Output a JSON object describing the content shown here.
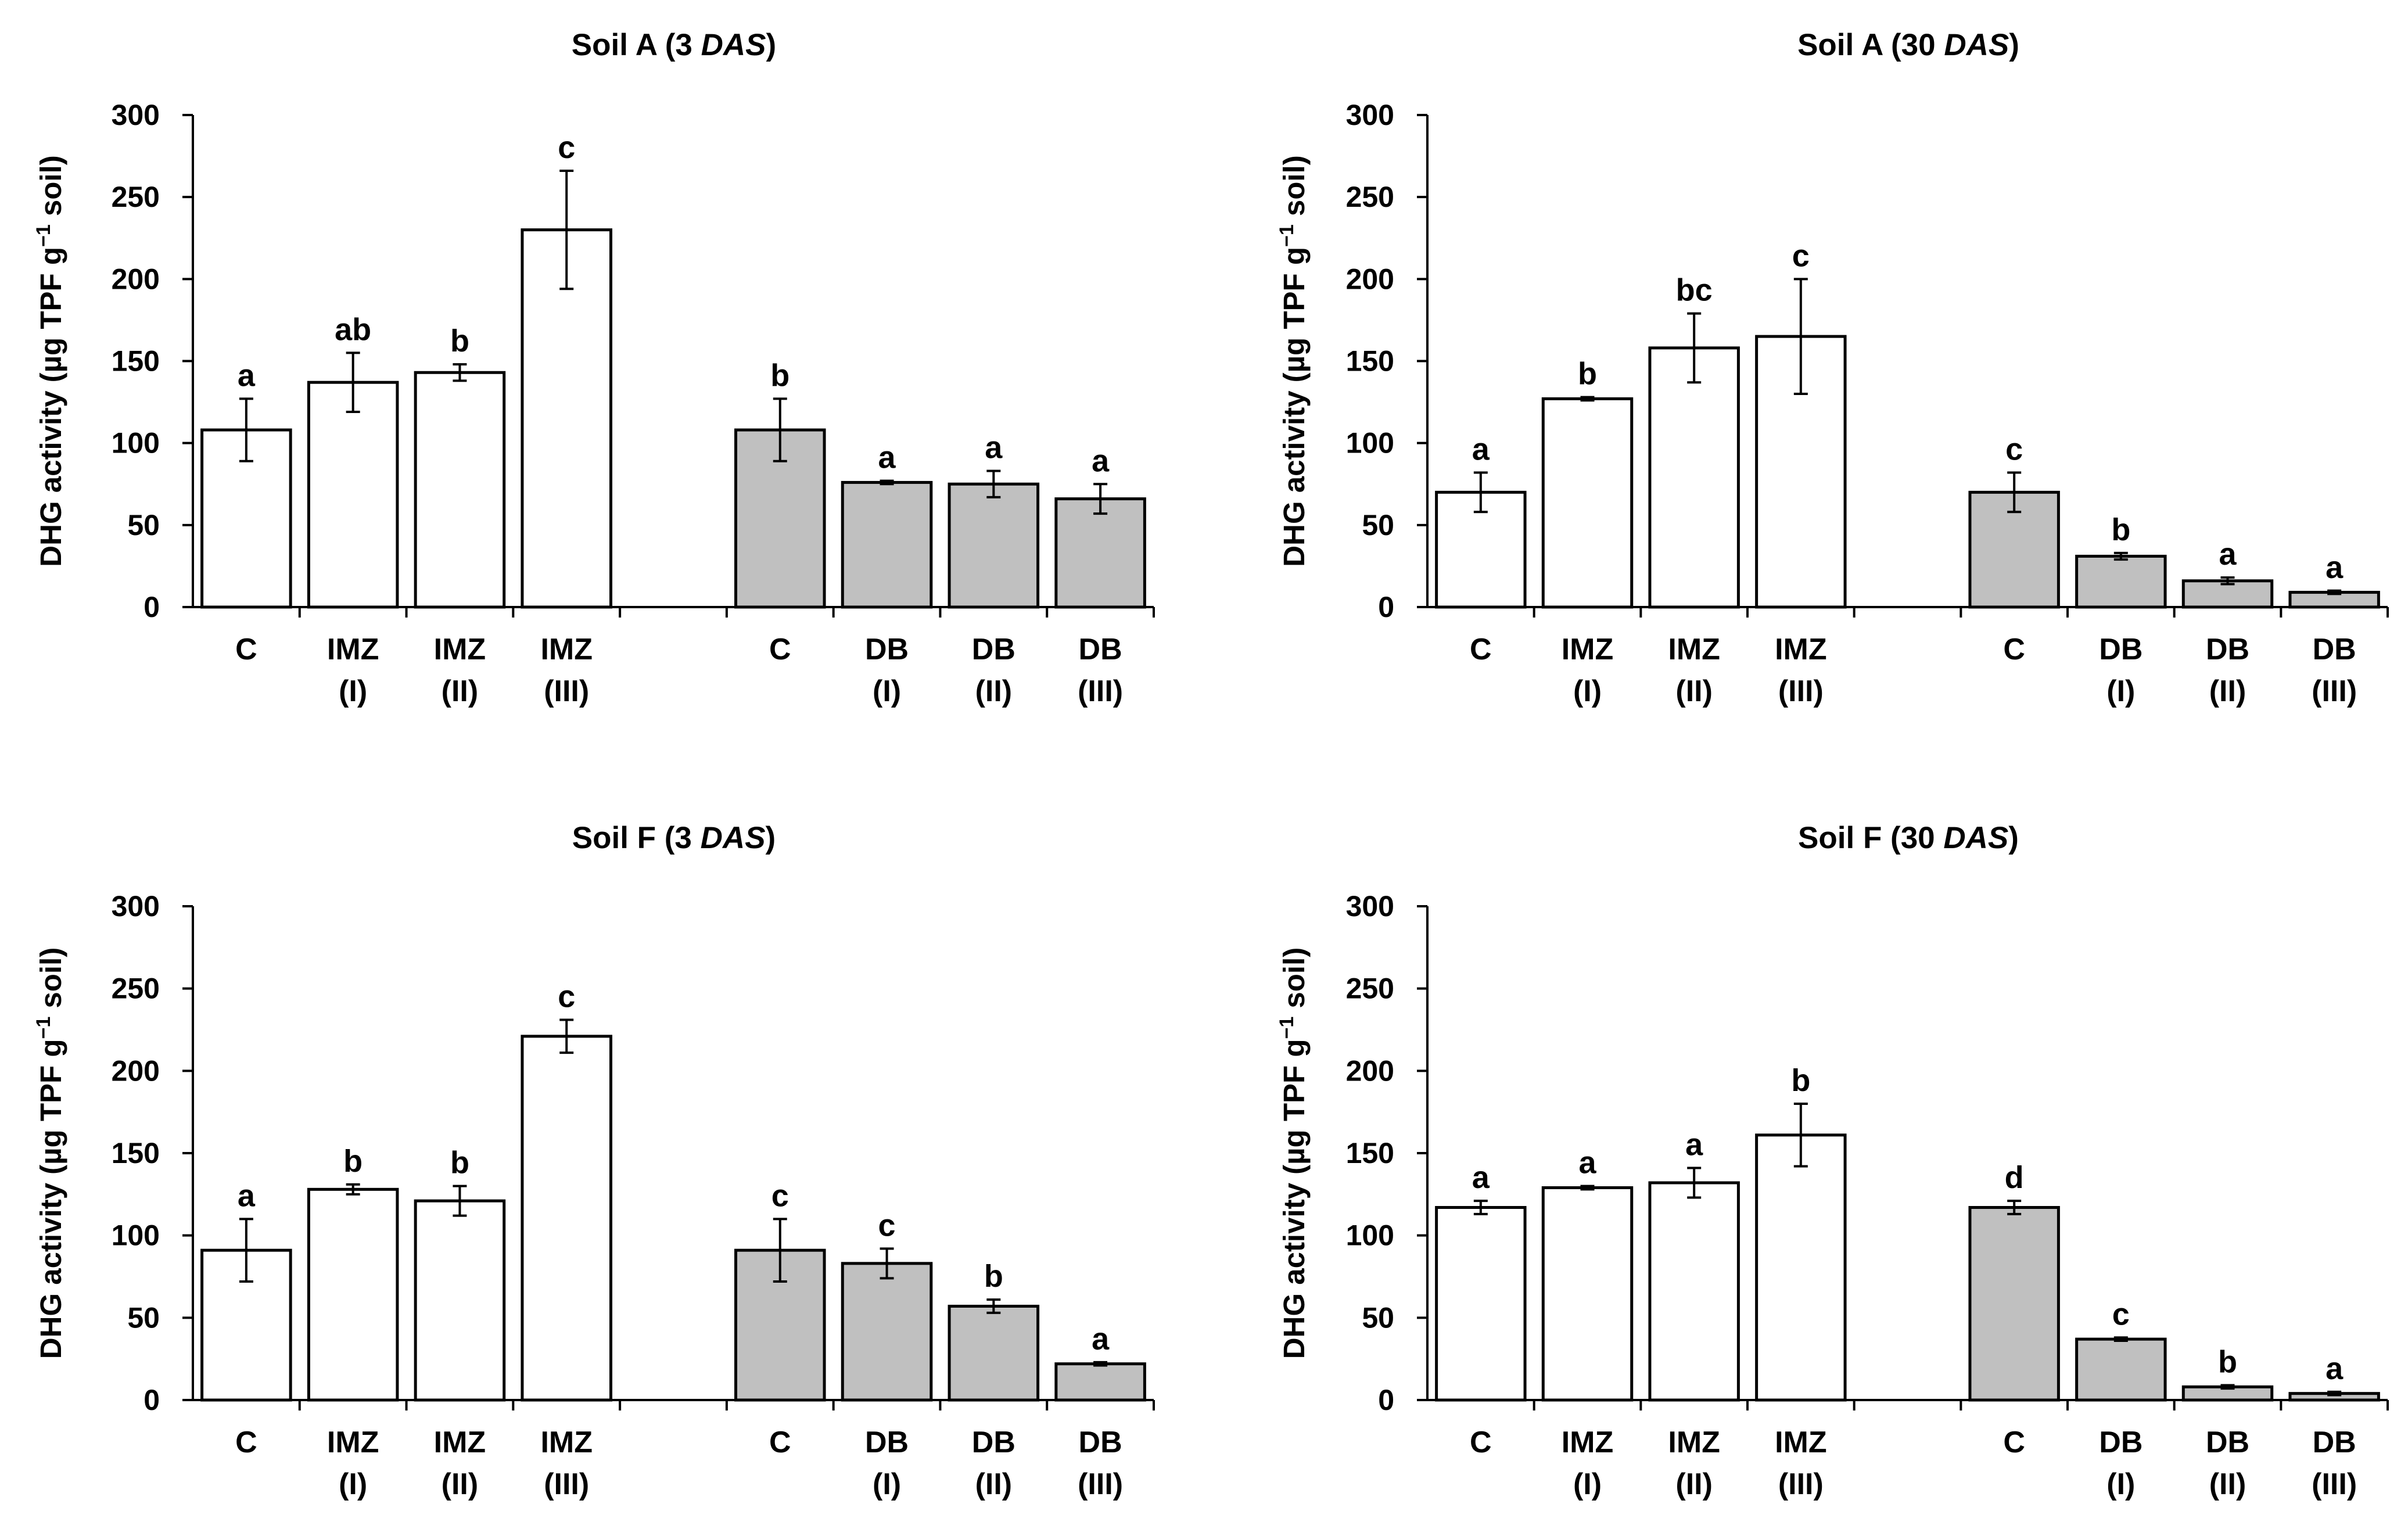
{
  "chart_data": [
    {
      "type": "bar",
      "title": "Soil A (3 ",
      "title_italic": "DAS",
      "title_end": ")",
      "ylabel": "DHG activity (µg TPF g",
      "ylabel_sup": "−1",
      "ylabel_end": " soil)",
      "ylim": [
        0,
        300
      ],
      "yticks": [
        "0",
        "50",
        "100",
        "150",
        "200",
        "250",
        "300"
      ],
      "categories": [
        {
          "line1": "C",
          "line2": ""
        },
        {
          "line1": "IMZ",
          "line2": "(I)"
        },
        {
          "line1": "IMZ",
          "line2": "(II)"
        },
        {
          "line1": "IMZ",
          "line2": "(III)"
        },
        {
          "line1": "",
          "line2": ""
        },
        {
          "line1": "C",
          "line2": ""
        },
        {
          "line1": "DB",
          "line2": "(I)"
        },
        {
          "line1": "DB",
          "line2": "(II)"
        },
        {
          "line1": "DB",
          "line2": "(III)"
        }
      ],
      "values": [
        108,
        137,
        143,
        230,
        null,
        108,
        76,
        75,
        66
      ],
      "errors": [
        19,
        18,
        5,
        36,
        null,
        19,
        1,
        8,
        9
      ],
      "letters": [
        "a",
        "ab",
        "b",
        "c",
        "",
        "b",
        "a",
        "a",
        "a"
      ],
      "fills": [
        "#ffffff",
        "#ffffff",
        "#ffffff",
        "#ffffff",
        "",
        "#c0c0c0",
        "#c0c0c0",
        "#c0c0c0",
        "#c0c0c0"
      ]
    },
    {
      "type": "bar",
      "title": "Soil A (30 ",
      "title_italic": "DAS",
      "title_end": ")",
      "ylabel": "DHG activity (µg TPF g",
      "ylabel_sup": "−1",
      "ylabel_end": " soil)",
      "ylim": [
        0,
        300
      ],
      "yticks": [
        "0",
        "50",
        "100",
        "150",
        "200",
        "250",
        "300"
      ],
      "categories": [
        {
          "line1": "C",
          "line2": ""
        },
        {
          "line1": "IMZ",
          "line2": "(I)"
        },
        {
          "line1": "IMZ",
          "line2": "(II)"
        },
        {
          "line1": "IMZ",
          "line2": "(III)"
        },
        {
          "line1": "",
          "line2": ""
        },
        {
          "line1": "C",
          "line2": ""
        },
        {
          "line1": "DB",
          "line2": "(I)"
        },
        {
          "line1": "DB",
          "line2": "(II)"
        },
        {
          "line1": "DB",
          "line2": "(III)"
        }
      ],
      "values": [
        70,
        127,
        158,
        165,
        null,
        70,
        31,
        16,
        9
      ],
      "errors": [
        12,
        1,
        21,
        35,
        null,
        12,
        2,
        2,
        1
      ],
      "letters": [
        "a",
        "b",
        "bc",
        "c",
        "",
        "c",
        "b",
        "a",
        "a"
      ],
      "fills": [
        "#ffffff",
        "#ffffff",
        "#ffffff",
        "#ffffff",
        "",
        "#c0c0c0",
        "#c0c0c0",
        "#c0c0c0",
        "#c0c0c0"
      ]
    },
    {
      "type": "bar",
      "title": "Soil F (3 ",
      "title_italic": "DAS",
      "title_end": ")",
      "ylabel": "DHG activity (µg TPF g",
      "ylabel_sup": "−1",
      "ylabel_end": " soil)",
      "ylim": [
        0,
        300
      ],
      "yticks": [
        "0",
        "50",
        "100",
        "150",
        "200",
        "250",
        "300"
      ],
      "categories": [
        {
          "line1": "C",
          "line2": ""
        },
        {
          "line1": "IMZ",
          "line2": "(I)"
        },
        {
          "line1": "IMZ",
          "line2": "(II)"
        },
        {
          "line1": "IMZ",
          "line2": "(III)"
        },
        {
          "line1": "",
          "line2": ""
        },
        {
          "line1": "C",
          "line2": ""
        },
        {
          "line1": "DB",
          "line2": "(I)"
        },
        {
          "line1": "DB",
          "line2": "(II)"
        },
        {
          "line1": "DB",
          "line2": "(III)"
        }
      ],
      "values": [
        91,
        128,
        121,
        221,
        null,
        91,
        83,
        57,
        22
      ],
      "errors": [
        19,
        3,
        9,
        10,
        null,
        19,
        9,
        4,
        1
      ],
      "letters": [
        "a",
        "b",
        "b",
        "c",
        "",
        "c",
        "c",
        "b",
        "a"
      ],
      "fills": [
        "#ffffff",
        "#ffffff",
        "#ffffff",
        "#ffffff",
        "",
        "#c0c0c0",
        "#c0c0c0",
        "#c0c0c0",
        "#c0c0c0"
      ]
    },
    {
      "type": "bar",
      "title": "Soil F (30 ",
      "title_italic": "DAS",
      "title_end": ")",
      "ylabel": "DHG activity (µg TPF g",
      "ylabel_sup": "−1",
      "ylabel_end": " soil)",
      "ylim": [
        0,
        300
      ],
      "yticks": [
        "0",
        "50",
        "100",
        "150",
        "200",
        "250",
        "300"
      ],
      "categories": [
        {
          "line1": "C",
          "line2": ""
        },
        {
          "line1": "IMZ",
          "line2": "(I)"
        },
        {
          "line1": "IMZ",
          "line2": "(II)"
        },
        {
          "line1": "IMZ",
          "line2": "(III)"
        },
        {
          "line1": "",
          "line2": ""
        },
        {
          "line1": "C",
          "line2": ""
        },
        {
          "line1": "DB",
          "line2": "(I)"
        },
        {
          "line1": "DB",
          "line2": "(II)"
        },
        {
          "line1": "DB",
          "line2": "(III)"
        }
      ],
      "values": [
        117,
        129,
        132,
        161,
        null,
        117,
        37,
        8,
        4
      ],
      "errors": [
        4,
        1,
        9,
        19,
        null,
        4,
        1,
        1,
        1
      ],
      "letters": [
        "a",
        "a",
        "a",
        "b",
        "",
        "d",
        "c",
        "b",
        "a"
      ],
      "fills": [
        "#ffffff",
        "#ffffff",
        "#ffffff",
        "#ffffff",
        "",
        "#c0c0c0",
        "#c0c0c0",
        "#c0c0c0",
        "#c0c0c0"
      ]
    }
  ]
}
